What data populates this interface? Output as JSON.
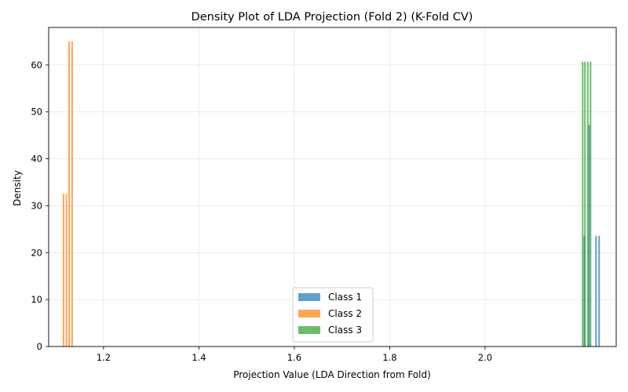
{
  "chart_data": {
    "type": "bar",
    "title": "Density Plot of LDA Projection (Fold 2) (K-Fold CV)",
    "xlabel": "Projection Value (LDA Direction from Fold)",
    "ylabel": "Density",
    "xlim": [
      1.085,
      2.275
    ],
    "ylim": [
      0,
      68
    ],
    "xticks": [
      "1.2",
      "1.4",
      "1.6",
      "1.8",
      "2.0"
    ],
    "yticks": [
      "0",
      "10",
      "20",
      "30",
      "40",
      "50",
      "60"
    ],
    "grid": true,
    "legend_position": "bottom-center",
    "series": [
      {
        "name": "Class 1",
        "color": "#1f77b4",
        "bins": [
          {
            "x0": 2.2065,
            "x1": 2.2075,
            "value": 23.6
          },
          {
            "x0": 2.2165,
            "x1": 2.2175,
            "value": 47.2
          },
          {
            "x0": 2.231,
            "x1": 2.2335,
            "value": 23.6
          },
          {
            "x0": 2.2375,
            "x1": 2.24,
            "value": 23.6
          }
        ]
      },
      {
        "name": "Class 2",
        "color": "#ff7f0e",
        "bins": [
          {
            "x0": 1.1145,
            "x1": 1.1152,
            "value": 32.5
          },
          {
            "x0": 1.1205,
            "x1": 1.1222,
            "value": 32.5
          },
          {
            "x0": 1.1262,
            "x1": 1.1271,
            "value": 65.0
          },
          {
            "x0": 1.1325,
            "x1": 1.1334,
            "value": 65.0
          }
        ]
      },
      {
        "name": "Class 3",
        "color": "#2ca02c",
        "bins": [
          {
            "x0": 2.203,
            "x1": 2.2036,
            "value": 60.7
          },
          {
            "x0": 2.2078,
            "x1": 2.2084,
            "value": 60.7
          },
          {
            "x0": 2.2138,
            "x1": 2.2144,
            "value": 60.7
          },
          {
            "x0": 2.2195,
            "x1": 2.2201,
            "value": 60.7
          }
        ]
      }
    ]
  }
}
